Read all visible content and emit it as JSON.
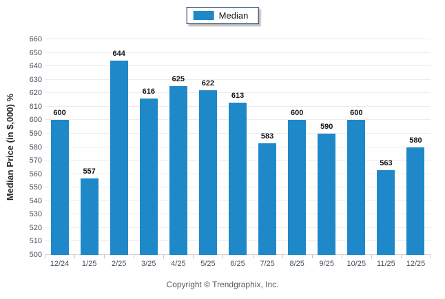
{
  "legend": {
    "label": "Median",
    "swatch_color": "#1e88c8"
  },
  "footer": {
    "copyright": "Copyright © Trendgraphix, Inc."
  },
  "colors": {
    "bar": "#1e88c8",
    "legend_border": "#17365d",
    "gridline": "#ececec",
    "axis_text": "#44505c",
    "value_label": "#141414"
  },
  "chart_data": {
    "type": "bar",
    "title": "",
    "xlabel": "",
    "ylabel": "Median Price (in $,000) %",
    "categories": [
      "12/24",
      "1/25",
      "2/25",
      "3/25",
      "4/25",
      "5/25",
      "6/25",
      "7/25",
      "8/25",
      "9/25",
      "10/25",
      "11/25",
      "12/25"
    ],
    "series": [
      {
        "name": "Median",
        "values": [
          600,
          557,
          644,
          616,
          625,
          622,
          613,
          583,
          600,
          590,
          600,
          563,
          580
        ]
      }
    ],
    "ylim": [
      500,
      660
    ],
    "ytick_step": 10,
    "grid": true,
    "value_labels": true,
    "legend_position": "top-center",
    "bar_color": "#1e88c8"
  }
}
